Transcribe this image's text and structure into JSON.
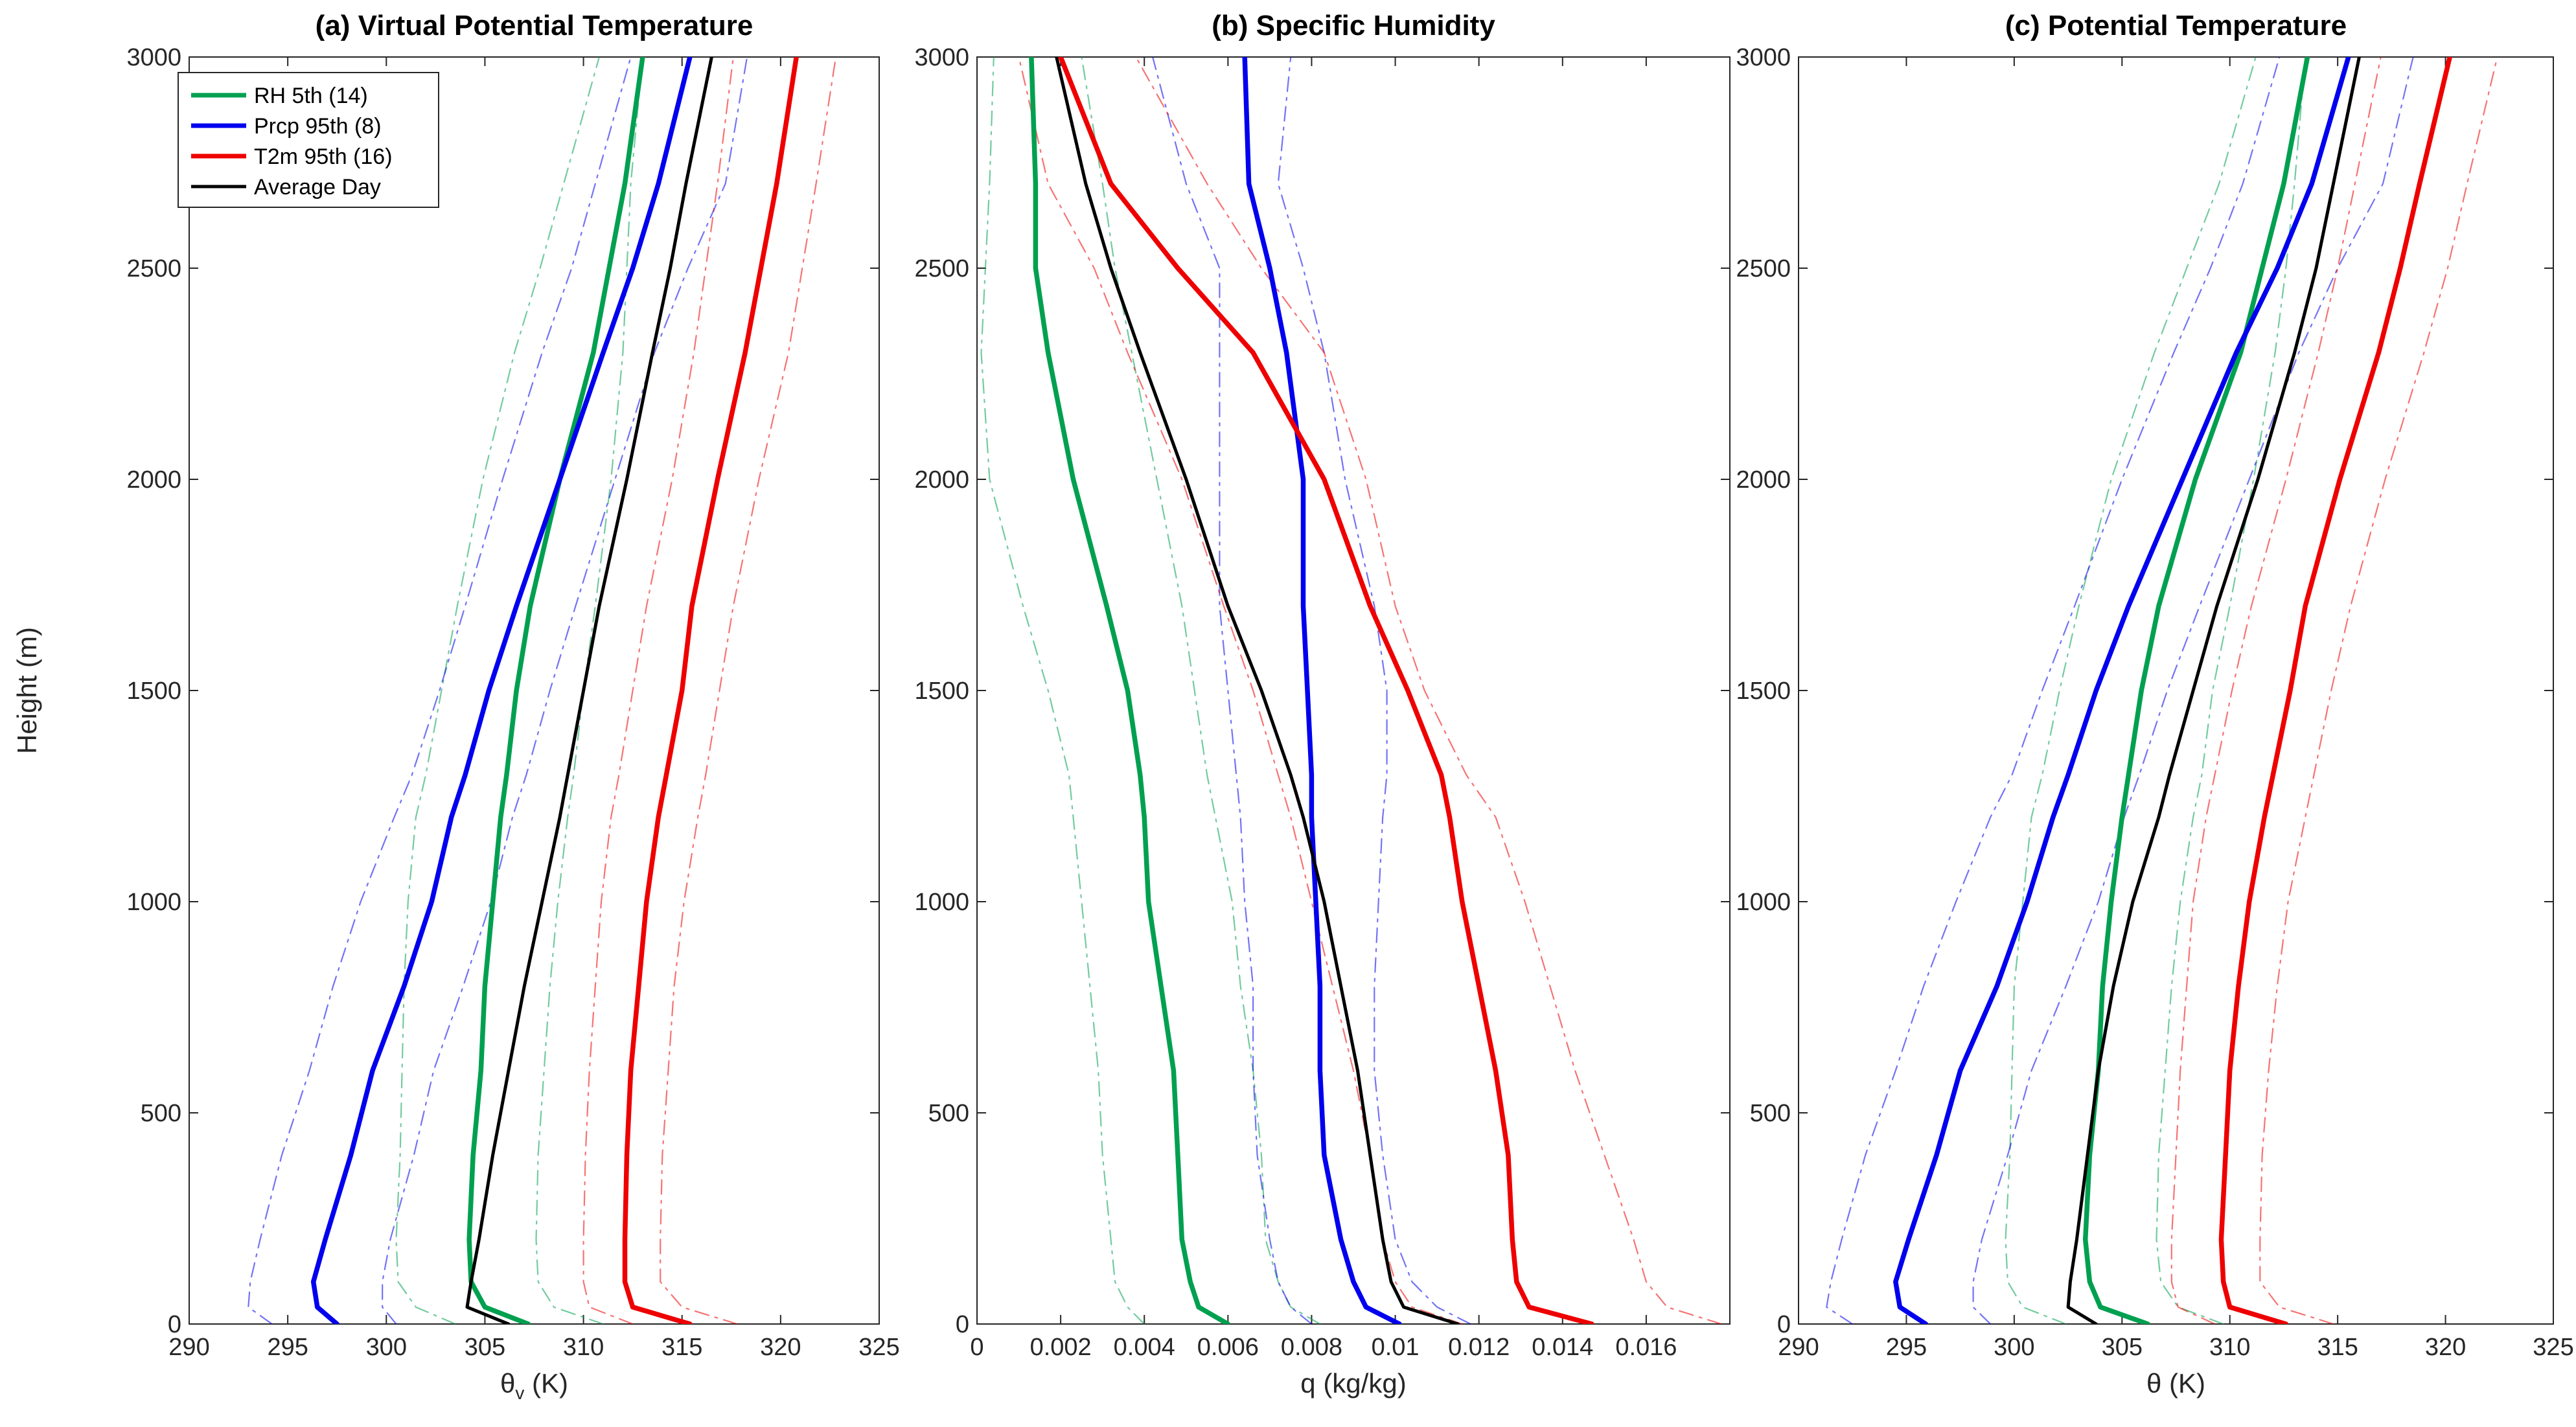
{
  "colors": {
    "rh": "#00a050",
    "prcp": "#0000ee",
    "t2m": "#ee0000",
    "avg": "#000000",
    "axis": "#262626"
  },
  "legend": {
    "entries": [
      {
        "label": "RH 5th (14)",
        "series": "rh"
      },
      {
        "label": "Prcp 95th (8)",
        "series": "prcp"
      },
      {
        "label": "T2m 95th (16)",
        "series": "t2m"
      },
      {
        "label": "Average Day",
        "series": "avg"
      }
    ]
  },
  "chart_data": [
    {
      "type": "line",
      "id": "a",
      "title": "(a) Virtual Potential Temperature",
      "xlabel_main": "θ",
      "xlabel_sub": "v",
      "xlabel_rest": " (K)",
      "ylabel": "Height (m)",
      "xlim": [
        290,
        325
      ],
      "ylim": [
        0,
        3000
      ],
      "xticks": [
        290,
        295,
        300,
        305,
        310,
        315,
        320,
        325
      ],
      "yticks": [
        0,
        500,
        1000,
        1500,
        2000,
        2500,
        3000
      ],
      "y": [
        0,
        40,
        100,
        200,
        400,
        600,
        800,
        1000,
        1200,
        1300,
        1500,
        1700,
        2000,
        2300,
        2500,
        2700,
        3000
      ],
      "series": [
        {
          "key": "rh",
          "style": "solid",
          "values": [
            307.2,
            305.0,
            304.3,
            304.2,
            304.4,
            304.8,
            305.0,
            305.4,
            305.8,
            306.1,
            306.6,
            307.3,
            308.8,
            310.5,
            311.3,
            312.1,
            313.0
          ]
        },
        {
          "key": "rh",
          "style": "dashed",
          "values": [
            311.0,
            308.5,
            307.7,
            307.6,
            307.7,
            308.0,
            308.3,
            308.7,
            309.2,
            309.5,
            310.0,
            310.6,
            311.4,
            312.0,
            312.2,
            312.4,
            313.0
          ]
        },
        {
          "key": "rh",
          "style": "dashed",
          "values": [
            303.5,
            301.5,
            300.6,
            300.5,
            300.7,
            300.8,
            300.9,
            301.1,
            301.5,
            302.0,
            302.8,
            303.6,
            304.9,
            306.5,
            307.8,
            309.0,
            310.8
          ]
        },
        {
          "key": "prcp",
          "style": "solid",
          "values": [
            297.5,
            296.5,
            296.3,
            296.9,
            298.2,
            299.3,
            300.9,
            302.3,
            303.3,
            304.0,
            305.2,
            306.6,
            308.8,
            311.0,
            312.5,
            313.8,
            315.4
          ]
        },
        {
          "key": "prcp",
          "style": "dashed",
          "values": [
            294.2,
            293.0,
            293.1,
            293.6,
            294.7,
            296.1,
            297.3,
            298.7,
            300.4,
            301.3,
            302.7,
            304.0,
            305.9,
            307.9,
            309.4,
            310.6,
            312.4
          ]
        },
        {
          "key": "prcp",
          "style": "dashed",
          "values": [
            300.5,
            299.8,
            299.8,
            300.2,
            301.4,
            302.4,
            303.9,
            305.3,
            306.4,
            307.1,
            308.3,
            309.6,
            311.6,
            313.6,
            315.3,
            317.2,
            318.3
          ]
        },
        {
          "key": "t2m",
          "style": "solid",
          "values": [
            315.4,
            312.5,
            312.1,
            312.1,
            312.2,
            312.4,
            312.8,
            313.2,
            313.8,
            314.2,
            315.0,
            315.5,
            316.8,
            318.2,
            319.0,
            319.8,
            320.8
          ]
        },
        {
          "key": "t2m",
          "style": "dashed",
          "values": [
            317.8,
            315.0,
            313.9,
            313.9,
            314.0,
            314.3,
            314.6,
            315.1,
            315.8,
            316.2,
            316.9,
            317.6,
            318.9,
            320.4,
            321.1,
            321.8,
            322.8
          ]
        },
        {
          "key": "t2m",
          "style": "dashed",
          "values": [
            312.5,
            310.3,
            310.0,
            310.0,
            310.1,
            310.3,
            310.6,
            310.9,
            311.4,
            311.8,
            312.5,
            313.2,
            314.5,
            315.6,
            316.2,
            316.8,
            317.6
          ]
        },
        {
          "key": "avg",
          "style": "solid",
          "values": [
            306.2,
            304.1,
            304.3,
            304.7,
            305.4,
            306.2,
            307.0,
            307.9,
            308.8,
            309.2,
            310.0,
            310.8,
            312.2,
            313.5,
            314.4,
            315.2,
            316.5
          ]
        }
      ]
    },
    {
      "type": "line",
      "id": "b",
      "title": "(b) Specific Humidity",
      "xlabel_main": "q (kg/kg)",
      "xlabel_sub": "",
      "xlabel_rest": "",
      "ylabel": "",
      "xlim": [
        0,
        0.018
      ],
      "ylim": [
        0,
        3000
      ],
      "xticks": [
        0,
        0.002,
        0.004,
        0.006,
        0.008,
        0.01,
        0.012,
        0.014,
        0.016
      ],
      "xtick_labels": [
        "0",
        "0.002",
        "0.004",
        "0.006",
        "0.008",
        "0.01",
        "0.012",
        "0.014",
        "0.016"
      ],
      "yticks": [
        0,
        500,
        1000,
        1500,
        2000,
        2500,
        3000
      ],
      "y": [
        0,
        40,
        100,
        200,
        400,
        600,
        800,
        1000,
        1200,
        1300,
        1500,
        1700,
        2000,
        2300,
        2500,
        2700,
        3000
      ],
      "series": [
        {
          "key": "rh",
          "style": "solid",
          "values": [
            0.006,
            0.0053,
            0.0051,
            0.0049,
            0.0048,
            0.0047,
            0.0044,
            0.0041,
            0.004,
            0.0039,
            0.0036,
            0.0031,
            0.0023,
            0.0017,
            0.0014,
            0.0014,
            0.0013
          ]
        },
        {
          "key": "rh",
          "style": "dashed",
          "values": [
            0.0082,
            0.0075,
            0.0072,
            0.0069,
            0.0068,
            0.0066,
            0.0063,
            0.0061,
            0.0057,
            0.0055,
            0.0052,
            0.0049,
            0.0043,
            0.0037,
            0.0033,
            0.003,
            0.0025
          ]
        },
        {
          "key": "rh",
          "style": "dashed",
          "values": [
            0.004,
            0.0036,
            0.0033,
            0.0032,
            0.003,
            0.0029,
            0.0027,
            0.0025,
            0.0023,
            0.0022,
            0.0017,
            0.0011,
            0.0003,
            0.0001,
            0.0002,
            0.0003,
            0.0004
          ]
        },
        {
          "key": "prcp",
          "style": "solid",
          "values": [
            0.0101,
            0.0093,
            0.009,
            0.0087,
            0.0083,
            0.0082,
            0.0082,
            0.0081,
            0.008,
            0.008,
            0.0079,
            0.0078,
            0.0078,
            0.0074,
            0.007,
            0.0065,
            0.0064
          ]
        },
        {
          "key": "prcp",
          "style": "dashed",
          "values": [
            0.0118,
            0.011,
            0.0104,
            0.01,
            0.0097,
            0.0095,
            0.0095,
            0.0096,
            0.0097,
            0.0098,
            0.0098,
            0.0095,
            0.0088,
            0.0083,
            0.0078,
            0.0072,
            0.0075
          ]
        },
        {
          "key": "prcp",
          "style": "dashed",
          "values": [
            0.008,
            0.0075,
            0.0072,
            0.007,
            0.0067,
            0.0066,
            0.0066,
            0.0064,
            0.0063,
            0.0062,
            0.006,
            0.0058,
            0.0058,
            0.0058,
            0.0058,
            0.005,
            0.0042
          ]
        },
        {
          "key": "t2m",
          "style": "solid",
          "values": [
            0.0147,
            0.0132,
            0.0129,
            0.0128,
            0.0127,
            0.0124,
            0.012,
            0.0116,
            0.0113,
            0.0111,
            0.0103,
            0.0094,
            0.0083,
            0.0066,
            0.0048,
            0.0032,
            0.002
          ]
        },
        {
          "key": "t2m",
          "style": "dashed",
          "values": [
            0.0178,
            0.0165,
            0.016,
            0.0157,
            0.015,
            0.0143,
            0.0137,
            0.0131,
            0.0124,
            0.0117,
            0.0107,
            0.01,
            0.0093,
            0.0083,
            0.0068,
            0.0055,
            0.0038
          ]
        },
        {
          "key": "t2m",
          "style": "dashed",
          "values": [
            0.0116,
            0.0104,
            0.01,
            0.0097,
            0.0094,
            0.009,
            0.0085,
            0.008,
            0.0075,
            0.0072,
            0.0066,
            0.0059,
            0.0049,
            0.0036,
            0.0028,
            0.0017,
            0.001
          ]
        },
        {
          "key": "avg",
          "style": "solid",
          "values": [
            0.0115,
            0.0102,
            0.0099,
            0.0097,
            0.0094,
            0.0091,
            0.0087,
            0.0083,
            0.0078,
            0.0075,
            0.0068,
            0.006,
            0.005,
            0.0039,
            0.0032,
            0.0026,
            0.0019
          ]
        }
      ]
    },
    {
      "type": "line",
      "id": "c",
      "title": "(c) Potential Temperature",
      "xlabel_main": "θ (K)",
      "xlabel_sub": "",
      "xlabel_rest": "",
      "ylabel": "",
      "xlim": [
        290,
        325
      ],
      "ylim": [
        0,
        3000
      ],
      "xticks": [
        290,
        295,
        300,
        305,
        310,
        315,
        320,
        325
      ],
      "yticks": [
        0,
        500,
        1000,
        1500,
        2000,
        2500,
        3000
      ],
      "y": [
        0,
        40,
        100,
        200,
        400,
        600,
        800,
        1000,
        1200,
        1300,
        1500,
        1700,
        2000,
        2300,
        2500,
        2700,
        3000
      ],
      "series": [
        {
          "key": "rh",
          "style": "solid",
          "values": [
            306.2,
            304.0,
            303.5,
            303.3,
            303.5,
            303.9,
            304.1,
            304.5,
            305.0,
            305.3,
            305.9,
            306.7,
            308.4,
            310.5,
            311.5,
            312.5,
            313.6
          ]
        },
        {
          "key": "rh",
          "style": "dashed",
          "values": [
            309.7,
            307.6,
            306.8,
            306.6,
            306.7,
            307.0,
            307.3,
            307.7,
            308.3,
            308.7,
            309.2,
            310.0,
            311.1,
            312.1,
            312.6,
            313.0,
            313.5
          ]
        },
        {
          "key": "rh",
          "style": "dashed",
          "values": [
            302.4,
            300.4,
            299.7,
            299.6,
            299.8,
            299.9,
            300.0,
            300.4,
            300.8,
            301.3,
            302.1,
            303.0,
            304.5,
            306.5,
            308.0,
            309.5,
            311.2
          ]
        },
        {
          "key": "prcp",
          "style": "solid",
          "values": [
            295.9,
            294.7,
            294.5,
            295.1,
            296.4,
            297.5,
            299.2,
            300.6,
            301.8,
            302.5,
            303.8,
            305.3,
            307.8,
            310.3,
            312.2,
            313.8,
            315.5
          ]
        },
        {
          "key": "prcp",
          "style": "dashed",
          "values": [
            292.5,
            291.3,
            291.5,
            292.0,
            293.1,
            294.5,
            295.8,
            297.3,
            298.9,
            299.9,
            301.3,
            302.8,
            305.0,
            307.4,
            309.1,
            310.6,
            312.3
          ]
        },
        {
          "key": "prcp",
          "style": "dashed",
          "values": [
            298.9,
            298.1,
            298.1,
            298.5,
            299.7,
            300.8,
            302.4,
            303.9,
            305.1,
            305.8,
            307.1,
            308.6,
            310.9,
            313.2,
            315.0,
            317.1,
            318.5
          ]
        },
        {
          "key": "t2m",
          "style": "solid",
          "values": [
            312.6,
            310.0,
            309.7,
            309.6,
            309.8,
            310.0,
            310.4,
            310.9,
            311.6,
            312.0,
            312.8,
            313.5,
            315.1,
            316.9,
            317.9,
            318.8,
            320.2
          ]
        },
        {
          "key": "t2m",
          "style": "dashed",
          "values": [
            314.8,
            312.3,
            311.4,
            311.4,
            311.5,
            311.8,
            312.2,
            312.7,
            313.5,
            313.9,
            314.7,
            315.6,
            317.2,
            319.0,
            320.1,
            321.0,
            322.4
          ]
        },
        {
          "key": "t2m",
          "style": "dashed",
          "values": [
            309.3,
            307.6,
            307.3,
            307.3,
            307.5,
            307.7,
            308.0,
            308.3,
            308.9,
            309.3,
            310.1,
            311.0,
            312.6,
            314.1,
            315.0,
            315.8,
            317.0
          ]
        },
        {
          "key": "avg",
          "style": "solid",
          "values": [
            303.8,
            302.5,
            302.6,
            302.9,
            303.4,
            303.9,
            304.6,
            305.5,
            306.7,
            307.2,
            308.3,
            309.4,
            311.3,
            313.0,
            314.0,
            314.8,
            316.0
          ]
        }
      ]
    }
  ]
}
